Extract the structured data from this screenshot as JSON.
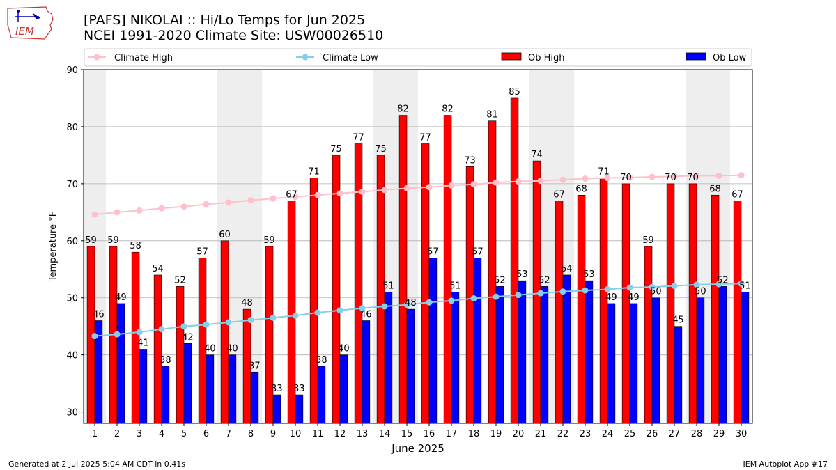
{
  "header": {
    "title_line1": "[PAFS] NIKOLAI :: Hi/Lo Temps for Jun 2025",
    "title_line2": "NCEI 1991-2020 Climate Site: USW00026510",
    "logo_text": "IEM"
  },
  "footer": {
    "generated": "Generated at 2 Jul 2025 5:04 AM CDT in 0.41s",
    "app": "IEM Autoplot App #17"
  },
  "colors": {
    "ob_high": "#ff0000",
    "ob_low": "#0000ff",
    "climate_high": "#ffc0cb",
    "climate_low": "#87ceeb",
    "weekend_band": "#eeeeee",
    "grid": "#b0b0b0"
  },
  "chart_data": {
    "type": "bar",
    "xlabel": "June 2025",
    "ylabel": "Temperature °F",
    "ylim": [
      28,
      90
    ],
    "yticks": [
      30,
      40,
      50,
      60,
      70,
      80,
      90
    ],
    "grid": "horizontal",
    "legend_position": "top",
    "categories": [
      "1",
      "2",
      "3",
      "4",
      "5",
      "6",
      "7",
      "8",
      "9",
      "10",
      "11",
      "12",
      "13",
      "14",
      "15",
      "16",
      "17",
      "18",
      "19",
      "20",
      "21",
      "22",
      "23",
      "24",
      "25",
      "26",
      "27",
      "28",
      "29",
      "30"
    ],
    "shaded_days": [
      1,
      7,
      8,
      14,
      15,
      21,
      22,
      28,
      29
    ],
    "series": [
      {
        "name": "Ob High",
        "kind": "bar",
        "color": "#ff0000",
        "values": [
          59,
          59,
          58,
          54,
          52,
          57,
          60,
          48,
          59,
          67,
          71,
          75,
          77,
          75,
          82,
          77,
          82,
          73,
          81,
          85,
          74,
          67,
          68,
          71,
          70,
          59,
          70,
          70,
          68,
          67
        ]
      },
      {
        "name": "Ob Low",
        "kind": "bar",
        "color": "#0000ff",
        "values": [
          46,
          49,
          41,
          38,
          42,
          40,
          40,
          37,
          33,
          33,
          38,
          40,
          46,
          51,
          48,
          57,
          51,
          57,
          52,
          53,
          52,
          54,
          53,
          49,
          49,
          50,
          45,
          50,
          52,
          51
        ]
      },
      {
        "name": "Climate High",
        "kind": "line",
        "color": "#ffc0cb",
        "values": [
          64.6,
          65.0,
          65.3,
          65.7,
          66.0,
          66.4,
          66.7,
          67.1,
          67.4,
          67.7,
          68.0,
          68.3,
          68.6,
          68.9,
          69.2,
          69.4,
          69.7,
          69.9,
          70.2,
          70.4,
          70.5,
          70.7,
          70.9,
          71.0,
          71.1,
          71.2,
          71.3,
          71.4,
          71.4,
          71.5
        ]
      },
      {
        "name": "Climate Low",
        "kind": "line",
        "color": "#87ceeb",
        "values": [
          43.3,
          43.6,
          44.0,
          44.5,
          45.0,
          45.3,
          45.7,
          46.1,
          46.5,
          46.9,
          47.4,
          47.8,
          48.2,
          48.5,
          48.8,
          49.2,
          49.5,
          49.9,
          50.2,
          50.5,
          50.8,
          51.1,
          51.3,
          51.5,
          51.8,
          51.9,
          52.1,
          52.3,
          52.4,
          52.5
        ]
      }
    ]
  }
}
